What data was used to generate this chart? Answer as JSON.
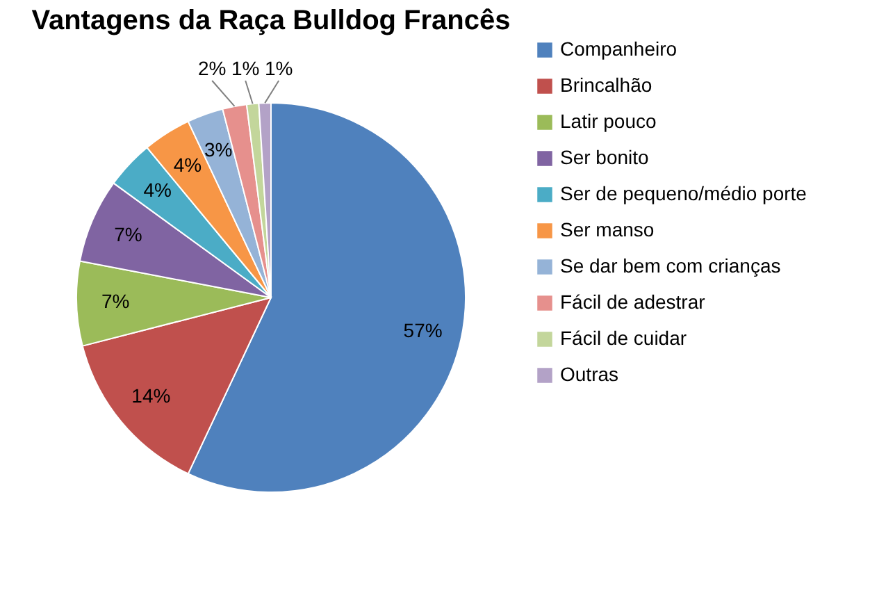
{
  "chart_data": {
    "type": "pie",
    "title": "Vantagens da Raça Bulldog Francês",
    "categories": [
      "Companheiro",
      "Brincalhão",
      "Latir pouco",
      "Ser bonito",
      "Ser de pequeno/médio porte",
      "Ser manso",
      "Se dar bem com crianças",
      "Fácil de adestrar",
      "Fácil de cuidar",
      "Outras"
    ],
    "values": [
      57,
      14,
      7,
      7,
      4,
      4,
      3,
      2,
      1,
      1
    ],
    "value_labels": [
      "57%",
      "14%",
      "7%",
      "7%",
      "4%",
      "4%",
      "3%",
      "2%",
      "1%",
      "1%"
    ],
    "colors": [
      "#4f81bd",
      "#c0504d",
      "#9bbb59",
      "#8064a2",
      "#4bacc6",
      "#f79646",
      "#95b3d7",
      "#e6908d",
      "#c3d69b",
      "#b3a2c7"
    ],
    "legend": "right"
  }
}
